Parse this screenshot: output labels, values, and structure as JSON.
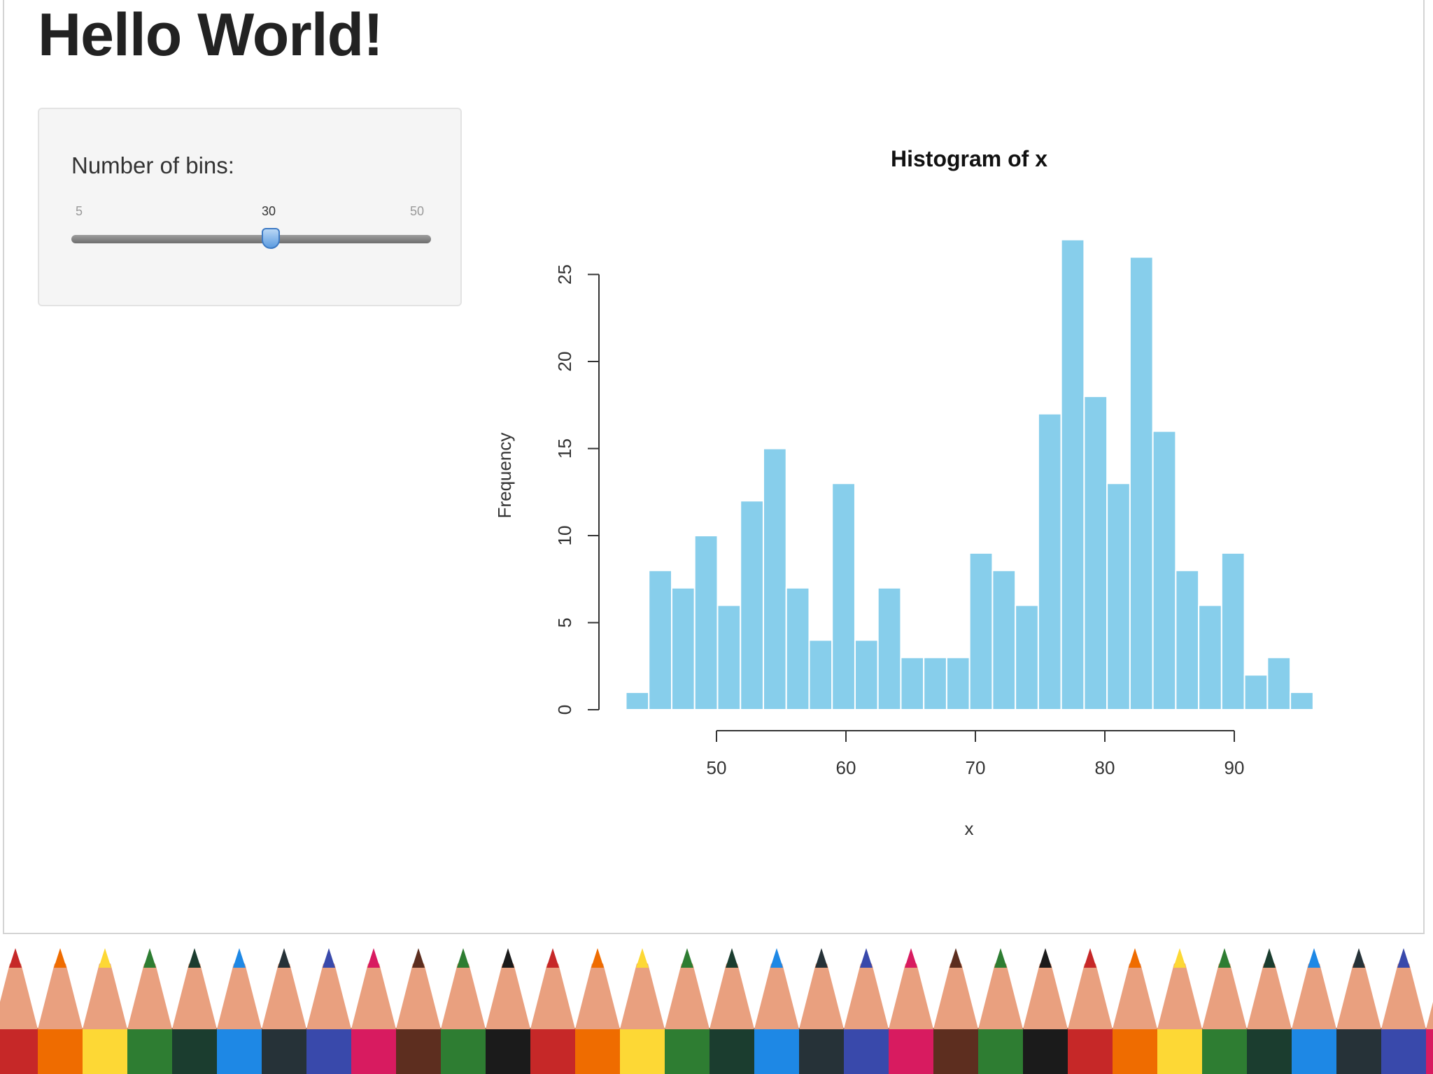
{
  "page": {
    "title": "Hello World!"
  },
  "sidebar": {
    "slider": {
      "label": "Number of bins:",
      "min": "5",
      "max": "50",
      "value": "30"
    }
  },
  "chart_data": {
    "type": "bar",
    "title": "Histogram of x",
    "xlabel": "x",
    "ylabel": "Frequency",
    "bin_start": 43,
    "bin_width": 1.77,
    "values": [
      1,
      8,
      7,
      10,
      6,
      12,
      15,
      7,
      4,
      13,
      4,
      7,
      3,
      3,
      3,
      9,
      8,
      6,
      17,
      27,
      18,
      13,
      26,
      16,
      8,
      6,
      9,
      2,
      3,
      1
    ],
    "xticks": [
      50,
      60,
      70,
      80,
      90
    ],
    "xtick_labels": [
      "50",
      "60",
      "70",
      "80",
      "90"
    ],
    "yticks": [
      0,
      5,
      10,
      15,
      20,
      25
    ],
    "ytick_labels": [
      "0",
      "5",
      "10",
      "15",
      "20",
      "25"
    ],
    "ylim": [
      0,
      25
    ],
    "bar_color": "#87ceeb"
  },
  "decor": {
    "pencil_colors": [
      "#c62828",
      "#ef6c00",
      "#fdd835",
      "#2e7d32",
      "#1b3d2f",
      "#1e88e5",
      "#263238",
      "#3949ab",
      "#d81b60",
      "#5d2e1f",
      "#2e7d32",
      "#1b1b1b"
    ]
  }
}
